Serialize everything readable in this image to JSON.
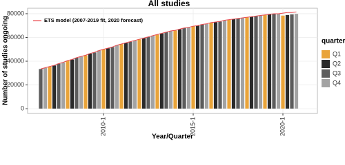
{
  "chart_data": {
    "type": "bar",
    "title": "All studies",
    "x_label": "Year/Quarter",
    "y_label": "Number of studies ongoing",
    "legend_title": "quarter",
    "categories": [
      null,
      null,
      null,
      null,
      null,
      null,
      null,
      null,
      null,
      null,
      null,
      null,
      null,
      null,
      "2010-1",
      null,
      null,
      null,
      null,
      null,
      null,
      null,
      null,
      null,
      null,
      null,
      null,
      null,
      null,
      null,
      null,
      null,
      null,
      null,
      "2015-1",
      null,
      null,
      null,
      null,
      null,
      null,
      null,
      null,
      null,
      null,
      null,
      null,
      null,
      null,
      null,
      null,
      null,
      null,
      null,
      "2020-1",
      null,
      null,
      null
    ],
    "series": [
      {
        "name": "Q1",
        "color": "#e9a43a",
        "values": [
          null,
          null,
          35500,
          null,
          null,
          null,
          40500,
          null,
          null,
          null,
          45000,
          null,
          null,
          null,
          50000,
          null,
          null,
          null,
          54500,
          null,
          null,
          null,
          58500,
          null,
          null,
          null,
          62500,
          null,
          null,
          null,
          66000,
          null,
          null,
          null,
          69500,
          null,
          null,
          null,
          72500,
          null,
          null,
          null,
          75000,
          null,
          null,
          null,
          77000,
          null,
          null,
          null,
          79000,
          null,
          null,
          null,
          78500,
          null,
          null,
          null
        ]
      },
      {
        "name": "Q2",
        "color": "#2a2a2a",
        "values": [
          null,
          null,
          null,
          36500,
          null,
          null,
          null,
          41500,
          null,
          null,
          null,
          46500,
          null,
          null,
          null,
          51000,
          null,
          null,
          null,
          55500,
          null,
          null,
          null,
          59500,
          null,
          null,
          null,
          63500,
          null,
          null,
          null,
          67000,
          null,
          null,
          null,
          70000,
          null,
          null,
          null,
          73000,
          null,
          null,
          null,
          75500,
          null,
          null,
          null,
          77500,
          null,
          null,
          null,
          79500,
          null,
          null,
          null,
          79000,
          null,
          null
        ]
      },
      {
        "name": "Q3",
        "color": "#5c5c5c",
        "values": [
          33500,
          null,
          null,
          null,
          38000,
          null,
          null,
          null,
          43000,
          null,
          null,
          null,
          47500,
          null,
          null,
          null,
          52000,
          null,
          null,
          null,
          56500,
          null,
          null,
          null,
          60500,
          null,
          null,
          null,
          64500,
          null,
          null,
          null,
          68000,
          null,
          null,
          null,
          71000,
          null,
          null,
          null,
          73500,
          null,
          null,
          null,
          76000,
          null,
          null,
          null,
          78000,
          null,
          null,
          null,
          80000,
          null,
          null,
          null,
          79500,
          null
        ]
      },
      {
        "name": "Q4",
        "color": "#a3a3a3",
        "values": [
          null,
          34500,
          null,
          null,
          null,
          39000,
          null,
          null,
          null,
          44000,
          null,
          null,
          null,
          49000,
          null,
          null,
          null,
          53500,
          null,
          null,
          null,
          57500,
          null,
          null,
          null,
          61500,
          null,
          null,
          null,
          65500,
          null,
          null,
          null,
          68500,
          null,
          null,
          null,
          71500,
          null,
          null,
          null,
          74500,
          null,
          null,
          null,
          76500,
          null,
          null,
          null,
          78500,
          null,
          null,
          null,
          80000,
          null,
          null,
          null,
          80000
        ]
      }
    ],
    "model": {
      "name": "ETS model (2007-2019 fit, 2020 forecast)",
      "color": "#e8474b",
      "values": [
        33500,
        34500,
        35500,
        36500,
        38000,
        39000,
        40500,
        41500,
        43000,
        44000,
        45000,
        46500,
        47500,
        49000,
        50000,
        51000,
        52000,
        53500,
        54500,
        55500,
        56500,
        57500,
        58500,
        59500,
        60500,
        61500,
        62500,
        63500,
        64500,
        65500,
        66000,
        67000,
        68000,
        68500,
        69500,
        70000,
        71000,
        71500,
        72500,
        73000,
        73500,
        74500,
        75000,
        75500,
        76000,
        76500,
        77000,
        77500,
        78000,
        78500,
        79000,
        79500,
        80000,
        80000,
        80500,
        81000,
        81000,
        81500
      ]
    },
    "ylim": [
      -4000,
      84600
    ],
    "yticks": [
      0,
      20000,
      40000,
      60000,
      80000
    ],
    "grid": true
  }
}
